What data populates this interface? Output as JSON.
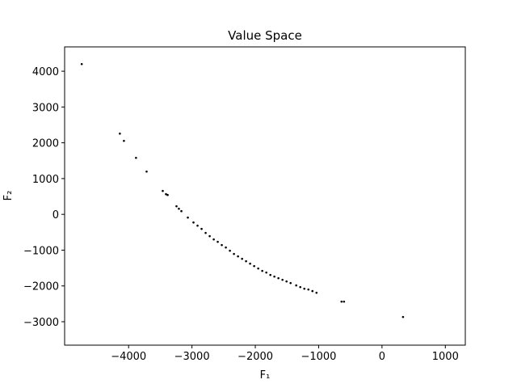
{
  "chart_data": {
    "type": "scatter",
    "title": "Value Space",
    "xlabel": "F₁",
    "ylabel": "F₂",
    "color": "#000000",
    "x": [
      -4740,
      -4138,
      -4074,
      -3883,
      -3716,
      -3461,
      -3410,
      -3384,
      -3244,
      -3206,
      -3167,
      -3065,
      -2976,
      -2912,
      -2848,
      -2784,
      -2720,
      -2656,
      -2593,
      -2529,
      -2465,
      -2401,
      -2337,
      -2273,
      -2209,
      -2146,
      -2082,
      -2018,
      -1954,
      -1890,
      -1826,
      -1762,
      -1699,
      -1635,
      -1571,
      -1507,
      -1443,
      -1354,
      -1290,
      -1226,
      -1162,
      -1098,
      -1034,
      -639,
      -600,
      332
    ],
    "y": [
      4200,
      2257,
      2054,
      1580,
      1196,
      655,
      564,
      542,
      226,
      158,
      90,
      -90,
      -226,
      -316,
      -406,
      -519,
      -609,
      -700,
      -767,
      -858,
      -925,
      -1016,
      -1106,
      -1174,
      -1242,
      -1309,
      -1377,
      -1445,
      -1512,
      -1580,
      -1625,
      -1693,
      -1738,
      -1783,
      -1828,
      -1874,
      -1919,
      -1986,
      -2032,
      -2077,
      -2099,
      -2144,
      -2190,
      -2438,
      -2438,
      -2867
    ],
    "xlim": [
      -5010,
      1315
    ],
    "ylim": [
      -3655,
      4680
    ],
    "xticks": [
      {
        "value": -4000,
        "label": "−4000"
      },
      {
        "value": -3000,
        "label": "−3000"
      },
      {
        "value": -2000,
        "label": "−2000"
      },
      {
        "value": -1000,
        "label": "−1000"
      },
      0,
      1000
    ],
    "yticks": [
      {
        "value": -3000,
        "label": "−3000"
      },
      {
        "value": -2000,
        "label": "−2000"
      },
      {
        "value": -1000,
        "label": "−1000"
      },
      0,
      1000,
      2000,
      3000,
      4000
    ]
  }
}
